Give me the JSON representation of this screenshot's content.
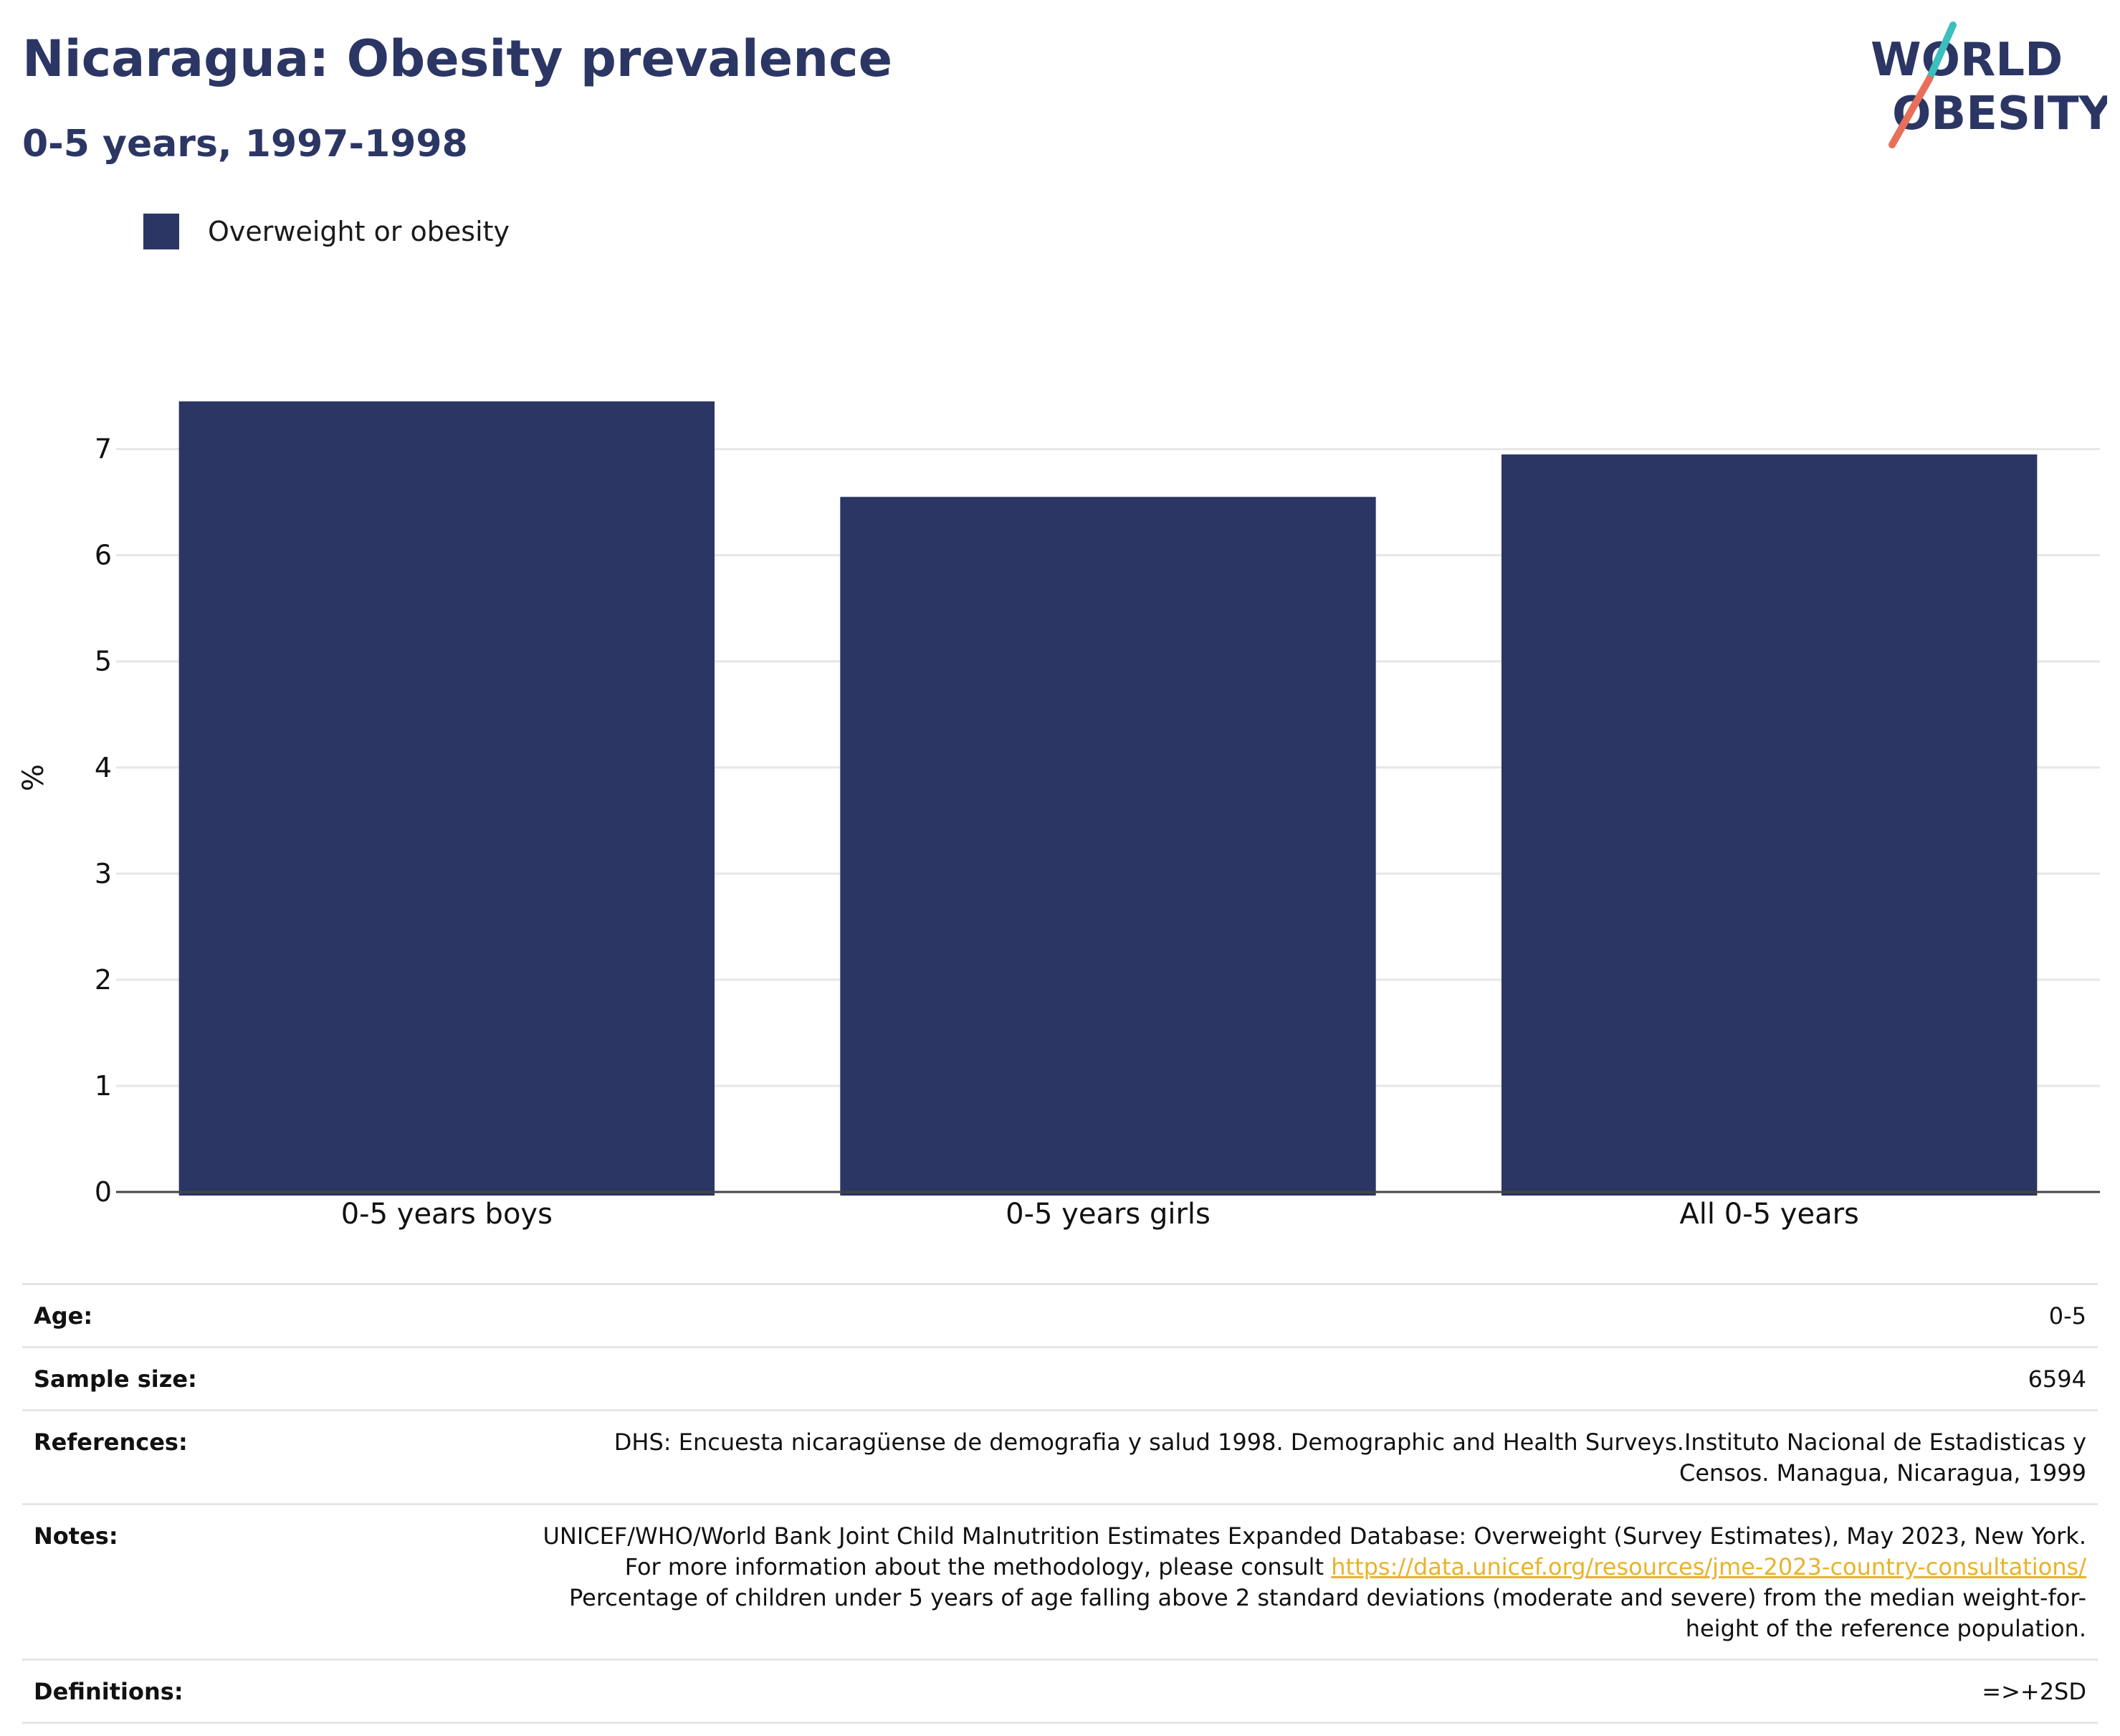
{
  "header": {
    "title": "Nicaragua: Obesity prevalence",
    "subtitle": "0-5 years, 1997-1998"
  },
  "logo": {
    "line1": "WORLD",
    "line2": "OBESITY",
    "colors": {
      "text": "#2b3664",
      "slash_top": "#3bbfbf",
      "slash_bottom": "#e8705a"
    }
  },
  "legend": {
    "label": "Overweight or obesity",
    "color": "#2b3664"
  },
  "chart_data": {
    "type": "bar",
    "categories": [
      "0-5 years boys",
      "0-5 years girls",
      "All 0-5 years"
    ],
    "series": [
      {
        "name": "Overweight or obesity",
        "values": [
          7.45,
          6.55,
          6.95
        ],
        "color": "#2b3664"
      }
    ],
    "title": "Nicaragua: Obesity prevalence",
    "subtitle": "0-5 years, 1997-1998",
    "xlabel": "",
    "ylabel": "%",
    "ylim": [
      0,
      7.45
    ],
    "yticks": [
      0,
      1,
      2,
      3,
      4,
      5,
      6,
      7
    ],
    "grid": true,
    "legend_position": "top-left"
  },
  "meta": {
    "age": {
      "label": "Age:",
      "value": "0-5"
    },
    "sample_size": {
      "label": "Sample size:",
      "value": "6594"
    },
    "references": {
      "label": "References:",
      "value": "DHS: Encuesta nicaragüense de demografia y salud 1998. Demographic and Health Surveys.Instituto Nacional de Estadisticas y Censos. Managua, Nicaragua, 1999"
    },
    "notes": {
      "label": "Notes:",
      "text_before": "UNICEF/WHO/World Bank Joint Child Malnutrition Estimates Expanded Database: Overweight (Survey Estimates), May 2023, New York. For more information about the methodology, please consult ",
      "link": "https://data.unicef.org/resources/jme-2023-country-consultations/",
      "text_after": " Percentage of children under 5 years of age falling above 2 standard deviations (moderate and severe) from the median weight-for-height of the reference population."
    },
    "definitions": {
      "label": "Definitions:",
      "value": "=>+2SD"
    }
  }
}
